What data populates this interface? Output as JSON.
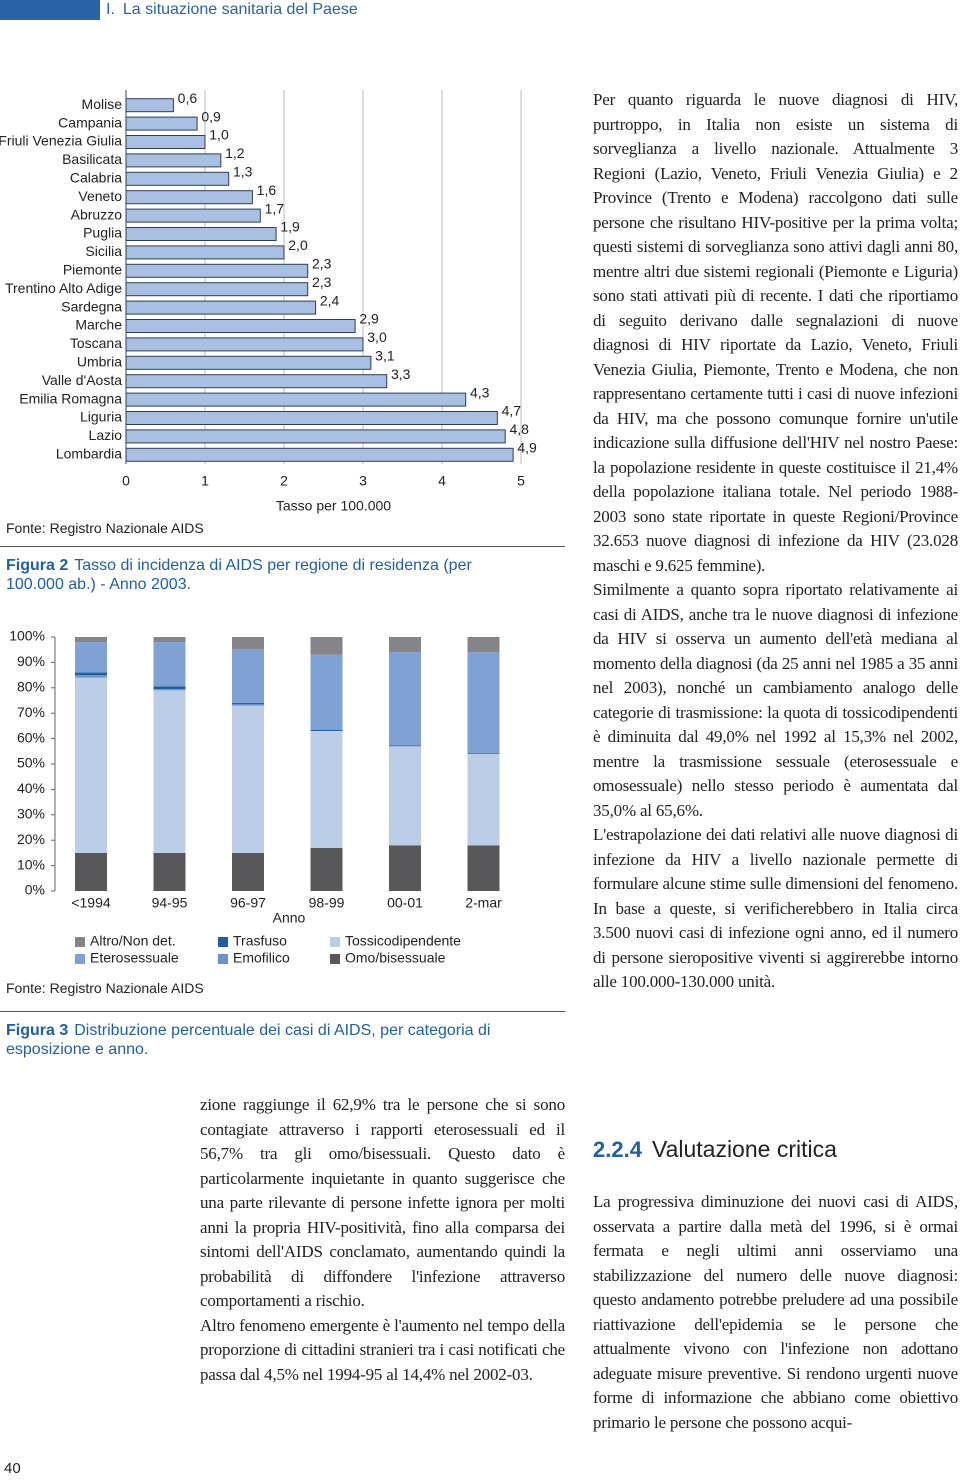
{
  "header": {
    "section": "I.",
    "title": "La situazione sanitaria del Paese"
  },
  "chart_data": [
    {
      "type": "hbar",
      "categories": [
        "Molise",
        "Campania",
        "Friuli Venezia Giulia",
        "Basilicata",
        "Calabria",
        "Veneto",
        "Abruzzo",
        "Puglia",
        "Sicilia",
        "Piemonte",
        "Trentino Alto Adige",
        "Sardegna",
        "Marche",
        "Toscana",
        "Umbria",
        "Valle d'Aosta",
        "Emilia Romagna",
        "Liguria",
        "Lazio",
        "Lombardia"
      ],
      "values": [
        0.6,
        0.9,
        1.0,
        1.2,
        1.3,
        1.6,
        1.7,
        1.9,
        2.0,
        2.3,
        2.3,
        2.4,
        2.9,
        3.0,
        3.1,
        3.3,
        4.3,
        4.7,
        4.8,
        4.9
      ],
      "value_labels": [
        "0,6",
        "0,9",
        "1,0",
        "1,2",
        "1,3",
        "1,6",
        "1,7",
        "1,9",
        "2,0",
        "2,3",
        "2,3",
        "2,4",
        "2,9",
        "3,0",
        "3,1",
        "3,3",
        "4,3",
        "4,7",
        "4,8",
        "4,9"
      ],
      "color": "#a9c0e3",
      "xlabel": "Tasso per 100.000",
      "xlim": [
        0,
        5
      ],
      "xticks": [
        0,
        1,
        2,
        3,
        4,
        5
      ],
      "grid": true,
      "source": "Fonte: Registro Nazionale AIDS",
      "caption_label": "Figura 2",
      "caption": "Tasso di incidenza di AIDS per regione di residenza (per 100.000 ab.) - Anno 2003."
    },
    {
      "type": "stacked_bar",
      "categories": [
        "<1994",
        "94-95",
        "96-97",
        "98-99",
        "00-01",
        "2-mar"
      ],
      "xlabel": "Anno",
      "series": [
        {
          "name": "Altro/Non det.",
          "color": "#858589",
          "values": [
            2,
            2,
            5,
            7,
            6,
            6
          ]
        },
        {
          "name": "Trasfuso",
          "color": "#1d5f9e",
          "values": [
            1,
            1,
            0.5,
            0.5,
            0.3,
            0.3
          ]
        },
        {
          "name": "Tossicodipendente",
          "color": "#bccde8",
          "values": [
            69,
            64,
            58,
            46,
            39,
            36
          ]
        },
        {
          "name": "Eterosessuale",
          "color": "#7fa1d3",
          "values": [
            12,
            17.5,
            21,
            29.5,
            36.7,
            39.7
          ]
        },
        {
          "name": "Emofilico",
          "color": "#6c93cc",
          "values": [
            1,
            0.5,
            0.5,
            0,
            0,
            0
          ]
        },
        {
          "name": "Omo/bisessuale",
          "color": "#58585b",
          "values": [
            15,
            15,
            15,
            17,
            18,
            18
          ]
        }
      ],
      "ylim": [
        0,
        100
      ],
      "yticks": [
        {
          "value": 0,
          "label": "0%"
        },
        {
          "value": 10,
          "label": "10%"
        },
        {
          "value": 20,
          "label": "20%"
        },
        {
          "value": 30,
          "label": "30%"
        },
        {
          "value": 40,
          "label": "40%"
        },
        {
          "value": 50,
          "label": "50%"
        },
        {
          "value": 60,
          "label": "60%"
        },
        {
          "value": 70,
          "label": "70%"
        },
        {
          "value": 80,
          "label": "80%"
        },
        {
          "value": 90,
          "label": "90%"
        },
        {
          "value": 100,
          "label": "100%"
        }
      ],
      "source": "Fonte: Registro Nazionale AIDS",
      "caption_label": "Figura 3",
      "caption": "Distribuzione percentuale dei casi di AIDS, per categoria di esposizione e anno."
    }
  ],
  "left_text": [
    "zione raggiunge il 62,9% tra le persone che si sono contagiate attraverso i rapporti eterosessuali ed il 56,7% tra gli omo/bisessuali. Questo dato è particolarmente inquietante in quanto suggerisce che una parte rilevante di persone infette ignora per molti anni la propria HIV-positività, fino alla comparsa dei sintomi dell'AIDS conclamato, aumentando quindi la probabilità di diffondere l'infezione attraverso comportamenti a rischio.",
    "Altro fenomeno emergente è l'aumento nel tempo della proporzione di cittadini stranieri tra i casi notificati che passa dal 4,5% nel 1994-95 al 14,4% nel 2002-03."
  ],
  "right_text": [
    "Per quanto riguarda le nuove diagnosi di HIV, purtroppo, in Italia non esiste un sistema di sorveglianza a livello nazionale. Attualmente 3 Regioni (Lazio, Veneto, Friuli Venezia Giulia) e 2 Province (Trento e Modena) raccolgono dati sulle persone che risultano HIV-positive per la prima volta; questi sistemi di sorveglianza sono attivi dagli anni 80, mentre altri due sistemi regionali (Piemonte e Liguria) sono stati attivati più di recente. I dati che riportiamo di seguito derivano dalle segnalazioni di nuove diagnosi di HIV riportate da Lazio, Veneto, Friuli Venezia Giulia, Piemonte, Trento e Modena, che non rappresentano certamente tutti i casi di nuove infezioni da HIV, ma che possono comunque fornire un'utile indicazione sulla diffusione dell'HIV nel nostro Paese: la popolazione residente in queste costituisce il 21,4% della popolazione italiana totale. Nel periodo 1988-2003 sono state riportate in queste Regioni/Province 32.653 nuove diagnosi di infezione da HIV (23.028 maschi e 9.625 femmine).",
    "Similmente a quanto sopra riportato relativamente ai casi di AIDS, anche tra le nuove diagnosi di infezione da HIV si osserva un aumento dell'età mediana al momento della diagnosi (da 25 anni nel 1985 a 35 anni nel 2003), nonché un cambiamento analogo delle categorie di trasmissione: la quota di tossicodipendenti è diminuita dal 49,0% nel 1992 al 15,3% nel 2002, mentre la trasmissione sessuale (eterosessuale e omosessuale) nello stesso periodo è aumentata dal 35,0% al 65,6%.",
    "L'estrapolazione dei dati relativi alle nuove diagnosi di infezione da HIV a livello nazionale permette di formulare alcune stime sulle dimensioni del fenomeno. In base a queste, si verificherebbero in Italia circa 3.500 nuovi casi di infezione ogni anno, ed il numero di persone sieropositive viventi si aggirerebbe intorno alle 100.000-130.000 unità."
  ],
  "section": {
    "number": "2.2.4",
    "title": "Valutazione critica",
    "text": "La progressiva diminuzione dei nuovi casi di AIDS, osservata a partire dalla metà del 1996, si è ormai fermata e negli ultimi anni osserviamo una stabilizzazione del numero delle nuove diagnosi: questo andamento potrebbe preludere ad una possibile riattivazione dell'epidemia se le persone che attualmente vivono con l'infezione non adottano adeguate misure preventive. Si rendono urgenti nuove forme di informazione che abbiano come obiettivo primario le persone che possono acqui-"
  },
  "page_number": "40"
}
